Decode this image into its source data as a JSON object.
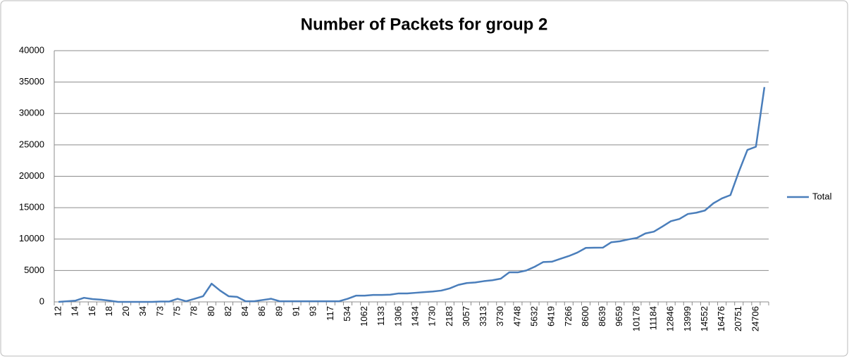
{
  "chart_data": {
    "type": "line",
    "title": "Number of Packets for group 2",
    "categories": [
      "12",
      null,
      "14",
      null,
      "16",
      null,
      "18",
      null,
      "20",
      null,
      "34",
      null,
      "73",
      null,
      "75",
      null,
      "78",
      null,
      "80",
      null,
      "82",
      null,
      "84",
      null,
      "86",
      null,
      "89",
      null,
      "91",
      null,
      "93",
      null,
      "117",
      null,
      "534",
      null,
      "1062",
      null,
      "1133",
      null,
      "1306",
      null,
      "1434",
      null,
      "1730",
      null,
      "2183",
      null,
      "3057",
      null,
      "3313",
      null,
      "3730",
      null,
      "4748",
      null,
      "5632",
      null,
      "6419",
      null,
      "7266",
      null,
      "8600",
      null,
      "8639",
      null,
      "9659",
      null,
      "10178",
      null,
      "11184",
      null,
      "12846",
      null,
      "13999",
      null,
      "14552",
      null,
      "16476",
      null,
      "20751",
      null,
      "24706",
      null
    ],
    "series": [
      {
        "name": "Total",
        "color": "#4a7ebb",
        "values": [
          0,
          100,
          200,
          650,
          450,
          350,
          200,
          0,
          0,
          0,
          0,
          0,
          50,
          50,
          500,
          100,
          500,
          900,
          2900,
          1800,
          900,
          800,
          100,
          100,
          300,
          500,
          100,
          100,
          100,
          100,
          100,
          100,
          100,
          100,
          500,
          1000,
          1000,
          1100,
          1100,
          1150,
          1350,
          1350,
          1450,
          1550,
          1650,
          1800,
          2150,
          2700,
          3000,
          3100,
          3300,
          3450,
          3700,
          4700,
          4700,
          5000,
          5600,
          6350,
          6400,
          6850,
          7300,
          7850,
          8600,
          8630,
          8640,
          9500,
          9650,
          9950,
          10178,
          10900,
          11184,
          12000,
          12846,
          13200,
          13999,
          14200,
          14552,
          15700,
          16476,
          17000,
          20751,
          24200,
          24706,
          34200
        ]
      }
    ],
    "ylim": [
      0,
      40000
    ],
    "yticks": [
      0,
      5000,
      10000,
      15000,
      20000,
      25000,
      30000,
      35000,
      40000
    ],
    "grid": true,
    "legend": "right"
  }
}
